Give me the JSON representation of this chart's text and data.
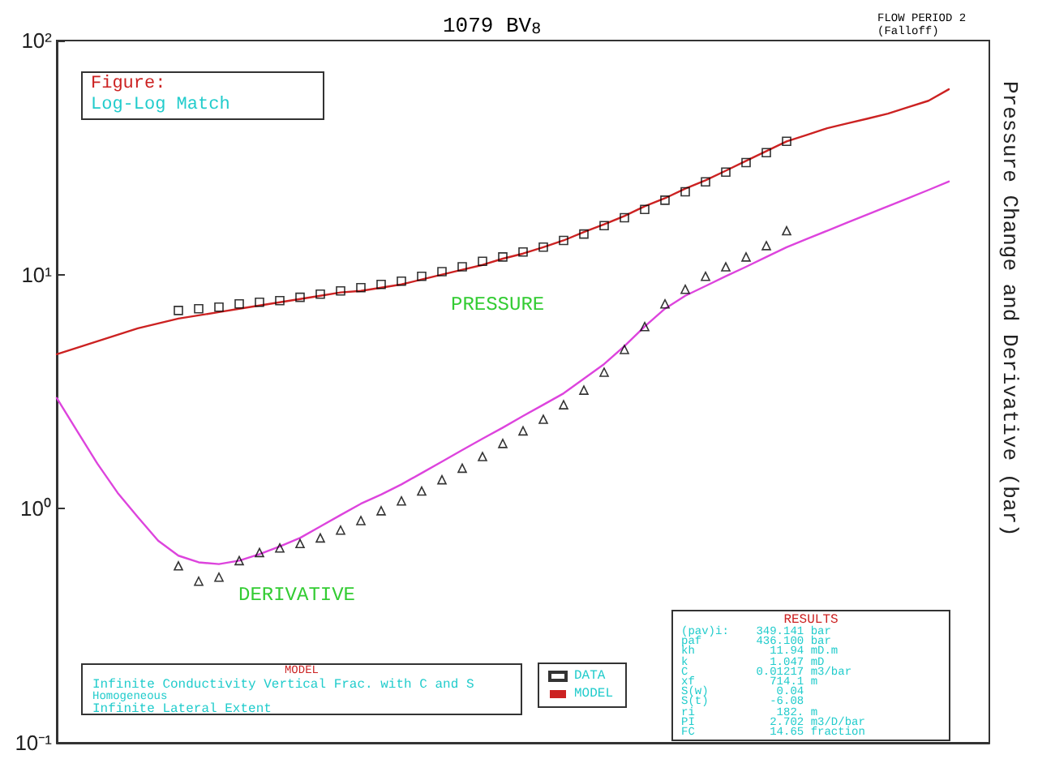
{
  "chart_data": {
    "type": "line",
    "title": "1079 BV$_{8}$",
    "subtitle": "FLOW PERIOD 2 (Falloff)",
    "ylabel": "Pressure Change and Derivative (bar)",
    "categories": [
      null,
      null,
      null,
      null,
      null,
      null,
      null,
      null,
      null,
      null,
      null,
      null,
      null,
      null,
      null,
      null,
      null,
      null,
      null,
      null,
      null,
      null,
      null,
      null,
      null,
      null,
      null,
      null,
      null,
      null,
      null,
      null,
      null,
      null,
      null,
      null,
      null,
      null,
      null,
      null,
      null,
      null,
      null,
      null,
      null,
      null,
      null
    ],
    "series": [
      {
        "name": "DATA",
        "type": "scatter",
        "marker": "square",
        "color": "#000000",
        "values": [
          null,
          null,
          null,
          null,
          null,
          null,
          7.03,
          7.15,
          7.26,
          7.5,
          7.62,
          7.74,
          8.0,
          8.25,
          8.52,
          8.8,
          9.08,
          9.38,
          9.84,
          10.3,
          10.8,
          11.4,
          11.9,
          12.5,
          13.1,
          14.0,
          14.9,
          16.2,
          17.5,
          19.0,
          20.8,
          22.6,
          24.9,
          27.4,
          30.1,
          33.2,
          37.1,
          null,
          null,
          null,
          null,
          null,
          null,
          null,
          null,
          null,
          null
        ]
      },
      {
        "type": "scatter",
        "marker": "triangle",
        "color": "#000000",
        "values": [
          null,
          null,
          null,
          null,
          null,
          null,
          0.57,
          0.49,
          0.51,
          0.6,
          0.65,
          0.68,
          0.71,
          0.75,
          0.81,
          0.89,
          0.98,
          1.08,
          1.19,
          1.33,
          1.49,
          1.67,
          1.9,
          2.15,
          2.41,
          2.78,
          3.21,
          3.83,
          4.79,
          6.0,
          7.5,
          8.66,
          9.84,
          10.8,
          11.9,
          13.3,
          15.4,
          null,
          null,
          null,
          null,
          null,
          null,
          null,
          null,
          null,
          null
        ]
      },
      {
        "name": "MODEL",
        "type": "line",
        "marker": "none",
        "color": "#cc2222",
        "values": [
          4.57,
          4.87,
          5.19,
          5.53,
          5.9,
          6.19,
          6.49,
          6.7,
          6.92,
          7.15,
          7.38,
          7.62,
          7.87,
          8.12,
          8.39,
          8.52,
          8.8,
          9.08,
          9.53,
          10.0,
          10.5,
          11.0,
          11.7,
          12.3,
          13.1,
          14.0,
          15.2,
          16.4,
          17.8,
          19.6,
          21.2,
          23.3,
          25.3,
          27.8,
          30.6,
          33.7,
          37.1,
          39.5,
          42.2,
          44.3,
          46.4,
          48.7,
          51.9,
          55.3,
          61.9,
          null,
          null
        ]
      },
      {
        "type": "line",
        "marker": "none",
        "color": "#dd44dd",
        "values": [
          2.97,
          2.15,
          1.56,
          1.17,
          0.92,
          0.73,
          0.63,
          0.59,
          0.58,
          0.6,
          0.64,
          0.69,
          0.75,
          0.84,
          0.94,
          1.05,
          1.15,
          1.27,
          1.42,
          1.59,
          1.78,
          1.99,
          2.22,
          2.49,
          2.78,
          3.11,
          3.59,
          4.15,
          4.95,
          6.0,
          7.15,
          8.12,
          8.94,
          9.84,
          10.8,
          11.9,
          13.1,
          14.2,
          15.4,
          16.7,
          18.1,
          19.6,
          21.2,
          23.0,
          25.0,
          null,
          null
        ]
      }
    ],
    "log": "y",
    "ylim": [
      0.1,
      100
    ],
    "yticks": [
      {
        "value": 0.1,
        "label": "10⁻¹"
      },
      {
        "value": 1,
        "label": "10⁰"
      },
      {
        "value": 10,
        "label": "10¹"
      },
      {
        "value": 100,
        "label": "10²"
      }
    ],
    "tick_labels": "y",
    "legend": "bottom",
    "annotations": [
      "Figure:",
      "Log-Log Match",
      "PRESSURE",
      "DERIVATIVE",
      "MODEL",
      "Infinite Conductivity Vertical Frac. with C and S",
      "Homogeneous",
      "Infinite Lateral Extent",
      "RESULTS",
      "(pav)i:    349.141 bar",
      "paf        436.100 bar",
      "kh           11.94 mD.m",
      "k            1.047 mD",
      "C          0.01217 m3/bar",
      "xf           714.1 m",
      "S(w)          0.04",
      "S(t)         -6.08",
      "ri            182. m",
      "PI           2.702 m3/D/bar",
      "FC           14.65 fraction"
    ]
  }
}
